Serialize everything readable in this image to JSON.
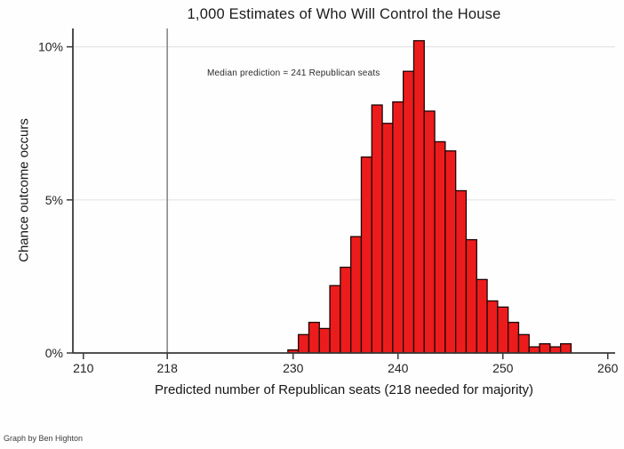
{
  "title": "1,000 Estimates of Who Will Control the House",
  "annotation": {
    "text": "Median prediction = 241 Republican seats"
  },
  "footer": {
    "credit": "Graph by Ben Highton"
  },
  "colors": {
    "bar_fill": "#ed1c1c",
    "bar_stroke": "#1c0404",
    "reference_line": "#8a8a8a",
    "gridline": "#e4e4e4",
    "axis": "#3a3a3a",
    "tick_text": "#222222"
  },
  "chart_data": {
    "type": "bar",
    "subtype": "histogram",
    "title": "1,000 Estimates of Who Will Control the House",
    "xlabel": "Predicted number of Republican seats (218 needed for majority)",
    "ylabel": "Chance outcome occurs",
    "categories": [
      230,
      231,
      232,
      233,
      234,
      235,
      236,
      237,
      238,
      239,
      240,
      241,
      242,
      243,
      244,
      245,
      246,
      247,
      248,
      249,
      250,
      251,
      252,
      253,
      254,
      255,
      256
    ],
    "values": [
      0.1,
      0.6,
      1.0,
      0.8,
      2.2,
      2.8,
      3.8,
      6.4,
      8.1,
      7.5,
      8.2,
      9.2,
      10.2,
      7.9,
      6.9,
      6.6,
      5.3,
      3.7,
      2.4,
      1.7,
      1.5,
      1.0,
      0.6,
      0.2,
      0.3,
      0.2,
      0.3
    ],
    "bin_width": 1,
    "median_seats": 241,
    "reference_line_x": 218,
    "x_ticks": [
      {
        "value": 210,
        "label": "210"
      },
      {
        "value": 218,
        "label": "218"
      },
      {
        "value": 230,
        "label": "230"
      },
      {
        "value": 240,
        "label": "240"
      },
      {
        "value": 250,
        "label": "250"
      },
      {
        "value": 260,
        "label": "260"
      }
    ],
    "y_ticks": [
      {
        "value": 0,
        "label": "0%"
      },
      {
        "value": 5,
        "label": "5%"
      },
      {
        "value": 10,
        "label": "10%"
      }
    ],
    "xlim": [
      209,
      260.7
    ],
    "ylim": [
      0,
      10.6
    ],
    "grid": "horizontal",
    "legend": "none"
  }
}
